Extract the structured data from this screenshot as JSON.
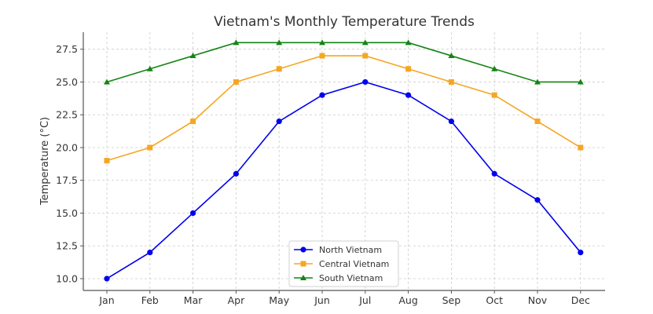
{
  "chart_data": {
    "type": "line",
    "title": "Vietnam's Monthly Temperature Trends",
    "xlabel": "",
    "ylabel": "Temperature (°C)",
    "categories": [
      "Jan",
      "Feb",
      "Mar",
      "Apr",
      "May",
      "Jun",
      "Jul",
      "Aug",
      "Sep",
      "Oct",
      "Nov",
      "Dec"
    ],
    "ylim": [
      9.1,
      28.8
    ],
    "yticks": [
      10.0,
      12.5,
      15.0,
      17.5,
      20.0,
      22.5,
      25.0,
      27.5
    ],
    "ytick_labels": [
      "10.0",
      "12.5",
      "15.0",
      "17.5",
      "20.0",
      "22.5",
      "25.0",
      "27.5"
    ],
    "grid": true,
    "legend_position": "lower-center",
    "series": [
      {
        "name": "North Vietnam",
        "color": "#0000ee",
        "marker": "circle",
        "values": [
          10,
          12,
          15,
          18,
          22,
          24,
          25,
          24,
          22,
          18,
          16,
          12
        ]
      },
      {
        "name": "Central Vietnam",
        "color": "#f5a623",
        "marker": "square",
        "values": [
          19,
          20,
          22,
          25,
          26,
          27,
          27,
          26,
          25,
          24,
          22,
          20
        ]
      },
      {
        "name": "South Vietnam",
        "color": "#148414",
        "marker": "triangle",
        "values": [
          25,
          26,
          27,
          28,
          28,
          28,
          28,
          28,
          27,
          26,
          25,
          25
        ]
      }
    ]
  }
}
